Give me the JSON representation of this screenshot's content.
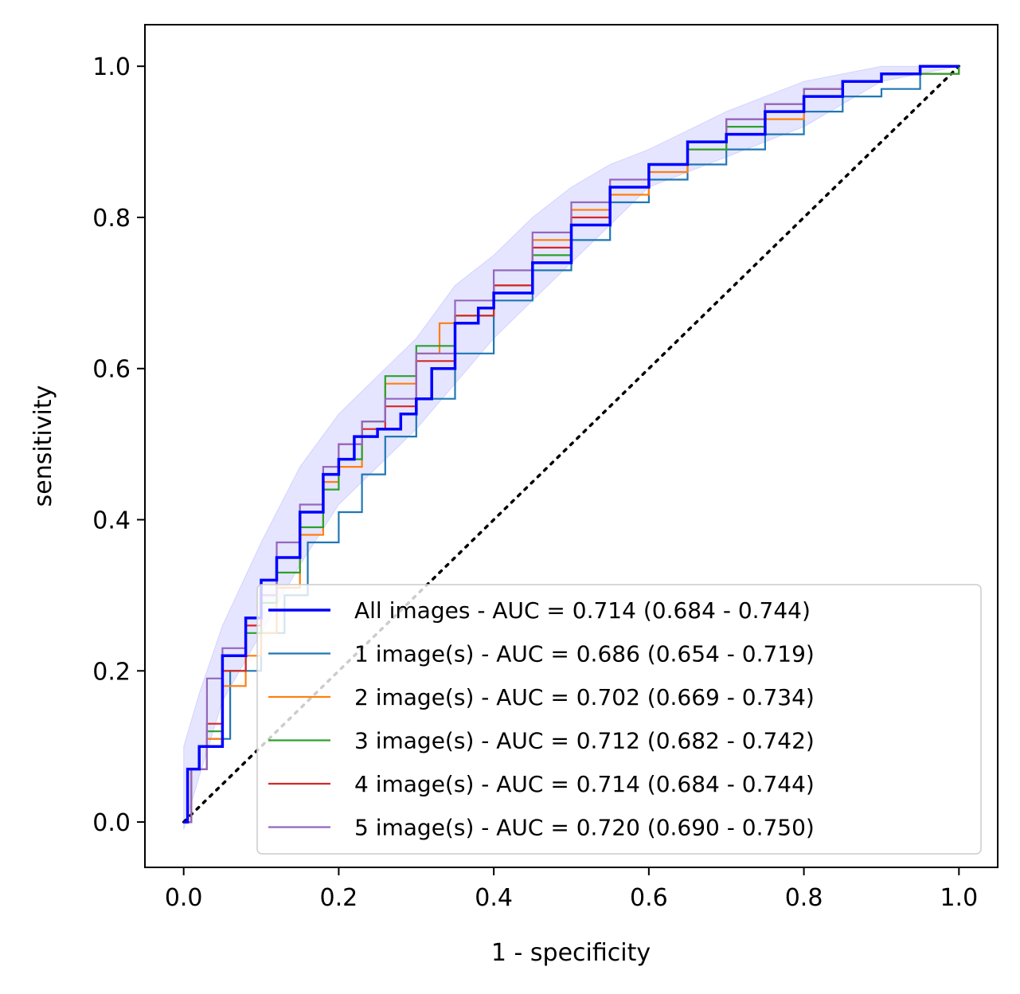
{
  "chart_data": {
    "type": "line",
    "title": "",
    "xlabel": "1 - specificity",
    "ylabel": "sensitivity",
    "xlim": [
      -0.05,
      1.05
    ],
    "ylim": [
      -0.06,
      1.055
    ],
    "xticks": [
      "0.0",
      "0.2",
      "0.4",
      "0.6",
      "0.8",
      "1.0"
    ],
    "yticks": [
      "0.0",
      "0.2",
      "0.4",
      "0.6",
      "0.8",
      "1.0"
    ],
    "grid": false,
    "legend_position": "lower-right",
    "diagonal": {
      "style": "dotted",
      "color": "#000000",
      "x": [
        0,
        1
      ],
      "y": [
        0,
        1
      ]
    },
    "confidence_band": {
      "series": "All images",
      "color": "#0000ff",
      "x": [
        0.0,
        0.02,
        0.05,
        0.1,
        0.15,
        0.2,
        0.25,
        0.3,
        0.35,
        0.4,
        0.45,
        0.5,
        0.55,
        0.6,
        0.7,
        0.8,
        0.9,
        1.0
      ],
      "upper": [
        0.1,
        0.17,
        0.26,
        0.37,
        0.47,
        0.54,
        0.59,
        0.64,
        0.71,
        0.75,
        0.8,
        0.84,
        0.87,
        0.89,
        0.94,
        0.98,
        1.0,
        1.0
      ],
      "lower": [
        -0.01,
        0.06,
        0.16,
        0.25,
        0.34,
        0.42,
        0.47,
        0.52,
        0.58,
        0.64,
        0.69,
        0.74,
        0.79,
        0.84,
        0.88,
        0.92,
        0.98,
        1.0
      ]
    },
    "series": [
      {
        "name": "All images - AUC = 0.714 (0.684 - 0.744)",
        "color": "#0000ff",
        "width": 3.5,
        "x": [
          0.0,
          0.005,
          0.02,
          0.05,
          0.08,
          0.1,
          0.12,
          0.15,
          0.18,
          0.2,
          0.22,
          0.25,
          0.28,
          0.3,
          0.32,
          0.35,
          0.38,
          0.4,
          0.45,
          0.5,
          0.55,
          0.6,
          0.65,
          0.7,
          0.75,
          0.8,
          0.85,
          0.9,
          0.95,
          1.0
        ],
        "y": [
          0.0,
          0.07,
          0.1,
          0.22,
          0.27,
          0.32,
          0.35,
          0.41,
          0.46,
          0.48,
          0.51,
          0.52,
          0.54,
          0.56,
          0.6,
          0.66,
          0.68,
          0.7,
          0.74,
          0.79,
          0.84,
          0.87,
          0.9,
          0.91,
          0.94,
          0.96,
          0.98,
          0.99,
          1.0,
          1.0
        ]
      },
      {
        "name": "1 image(s) - AUC = 0.686 (0.654 - 0.719)",
        "color": "#1f77b4",
        "width": 2.2,
        "x": [
          0.0,
          0.01,
          0.03,
          0.06,
          0.1,
          0.13,
          0.16,
          0.2,
          0.23,
          0.26,
          0.3,
          0.35,
          0.4,
          0.45,
          0.5,
          0.55,
          0.6,
          0.65,
          0.7,
          0.75,
          0.8,
          0.85,
          0.9,
          0.95,
          1.0
        ],
        "y": [
          0.0,
          0.07,
          0.11,
          0.2,
          0.25,
          0.3,
          0.37,
          0.41,
          0.46,
          0.51,
          0.56,
          0.62,
          0.69,
          0.73,
          0.77,
          0.82,
          0.85,
          0.87,
          0.89,
          0.91,
          0.94,
          0.96,
          0.97,
          0.99,
          1.0
        ]
      },
      {
        "name": "2 image(s) - AUC = 0.702 (0.669 - 0.734)",
        "color": "#ff7f0e",
        "width": 2.2,
        "x": [
          0.0,
          0.01,
          0.03,
          0.05,
          0.08,
          0.1,
          0.12,
          0.15,
          0.18,
          0.2,
          0.23,
          0.26,
          0.3,
          0.33,
          0.35,
          0.4,
          0.45,
          0.5,
          0.55,
          0.6,
          0.65,
          0.7,
          0.75,
          0.8,
          0.85,
          0.9,
          0.95,
          1.0
        ],
        "y": [
          0.0,
          0.07,
          0.11,
          0.18,
          0.22,
          0.25,
          0.31,
          0.38,
          0.45,
          0.47,
          0.53,
          0.58,
          0.62,
          0.66,
          0.67,
          0.71,
          0.77,
          0.81,
          0.83,
          0.86,
          0.89,
          0.91,
          0.93,
          0.96,
          0.98,
          0.99,
          0.99,
          1.0
        ]
      },
      {
        "name": "3 image(s) - AUC = 0.712 (0.682 - 0.742)",
        "color": "#2ca02c",
        "width": 2.2,
        "x": [
          0.0,
          0.01,
          0.03,
          0.05,
          0.08,
          0.1,
          0.12,
          0.15,
          0.18,
          0.2,
          0.23,
          0.26,
          0.3,
          0.35,
          0.4,
          0.45,
          0.5,
          0.55,
          0.6,
          0.65,
          0.7,
          0.75,
          0.8,
          0.85,
          0.9,
          0.95,
          1.0
        ],
        "y": [
          0.0,
          0.07,
          0.12,
          0.2,
          0.25,
          0.29,
          0.33,
          0.39,
          0.44,
          0.48,
          0.53,
          0.59,
          0.63,
          0.67,
          0.71,
          0.75,
          0.79,
          0.84,
          0.87,
          0.89,
          0.92,
          0.94,
          0.97,
          0.98,
          0.99,
          0.99,
          1.0
        ]
      },
      {
        "name": "4 image(s) - AUC = 0.714 (0.684 - 0.744)",
        "color": "#d62728",
        "width": 2.2,
        "x": [
          0.0,
          0.01,
          0.03,
          0.05,
          0.08,
          0.1,
          0.12,
          0.15,
          0.18,
          0.2,
          0.23,
          0.26,
          0.3,
          0.35,
          0.4,
          0.45,
          0.5,
          0.55,
          0.6,
          0.65,
          0.7,
          0.75,
          0.8,
          0.85,
          0.9,
          0.95,
          1.0
        ],
        "y": [
          0.0,
          0.07,
          0.13,
          0.2,
          0.26,
          0.3,
          0.35,
          0.41,
          0.46,
          0.5,
          0.52,
          0.55,
          0.61,
          0.67,
          0.71,
          0.76,
          0.8,
          0.84,
          0.87,
          0.9,
          0.93,
          0.95,
          0.97,
          0.98,
          0.99,
          1.0,
          1.0
        ]
      },
      {
        "name": "5 image(s) - AUC = 0.720 (0.690 - 0.750)",
        "color": "#9467bd",
        "width": 2.2,
        "x": [
          0.0,
          0.01,
          0.03,
          0.05,
          0.08,
          0.1,
          0.12,
          0.15,
          0.18,
          0.2,
          0.23,
          0.26,
          0.3,
          0.35,
          0.4,
          0.45,
          0.5,
          0.55,
          0.6,
          0.65,
          0.7,
          0.75,
          0.8,
          0.85,
          0.9,
          0.95,
          1.0
        ],
        "y": [
          0.0,
          0.07,
          0.19,
          0.23,
          0.27,
          0.3,
          0.37,
          0.42,
          0.47,
          0.5,
          0.53,
          0.56,
          0.62,
          0.69,
          0.73,
          0.78,
          0.82,
          0.85,
          0.87,
          0.9,
          0.93,
          0.95,
          0.97,
          0.98,
          0.99,
          1.0,
          1.0
        ]
      }
    ]
  }
}
